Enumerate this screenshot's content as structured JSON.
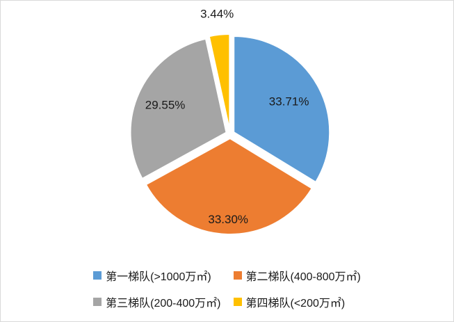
{
  "chart_data": {
    "type": "pie",
    "title": "",
    "legend_position": "bottom",
    "label_format": "percent",
    "slices": [
      {
        "label": "第一梯队(>1000万㎡)",
        "value": 33.71,
        "display": "33.71%",
        "color": "#5B9BD5"
      },
      {
        "label": "第二梯队(400-800万㎡)",
        "value": 33.3,
        "display": "33.30%",
        "color": "#ED7D31"
      },
      {
        "label": "第三梯队(200-400万㎡)",
        "value": 29.55,
        "display": "29.55%",
        "color": "#A5A5A5"
      },
      {
        "label": "第四梯队(<200万㎡)",
        "value": 3.44,
        "display": "3.44%",
        "color": "#FFC000"
      }
    ]
  }
}
